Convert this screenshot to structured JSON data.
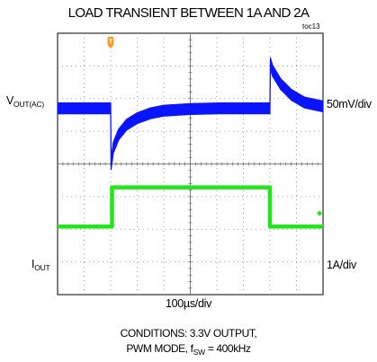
{
  "chart_data": {
    "type": "line",
    "title": "LOAD TRANSIENT BETWEEN 1A AND 2A",
    "figure_id": "toc13",
    "xlabel": "100µs/div",
    "x_divisions": 10,
    "y_divisions": 8,
    "grid": true,
    "trigger_marker": "T",
    "series": [
      {
        "label_main": "V",
        "label_sub": "OUT(AC)",
        "scale": "50mV/div",
        "color": "#0a14ff",
        "time_div": [
          0,
          2,
          2.01,
          2.1,
          2.3,
          2.6,
          3.0,
          3.5,
          4.0,
          5.0,
          6.0,
          7.0,
          8.0,
          8.01,
          8.1,
          8.4,
          8.8,
          9.3,
          10.0
        ],
        "value_div": [
          0,
          0,
          -1.75,
          -1.2,
          -0.8,
          -0.5,
          -0.3,
          -0.15,
          -0.07,
          -0.02,
          0,
          0,
          0,
          1.4,
          1.15,
          0.75,
          0.42,
          0.18,
          0.06
        ]
      },
      {
        "label_main": "I",
        "label_sub": "OUT",
        "scale": "1A/div",
        "color": "#22e61a",
        "ground_marker": "◆",
        "time_div": [
          0,
          2.05,
          2.05,
          8.0,
          8.0,
          10.0
        ],
        "value_div": [
          0,
          0,
          1,
          1,
          0,
          0
        ]
      }
    ],
    "conditions_line1": "CONDITIONS:  3.3V OUTPUT,",
    "conditions_line2_prefix": "PWM MODE, f",
    "conditions_line2_sub": "SW",
    "conditions_line2_suffix": " = 400kHz"
  }
}
